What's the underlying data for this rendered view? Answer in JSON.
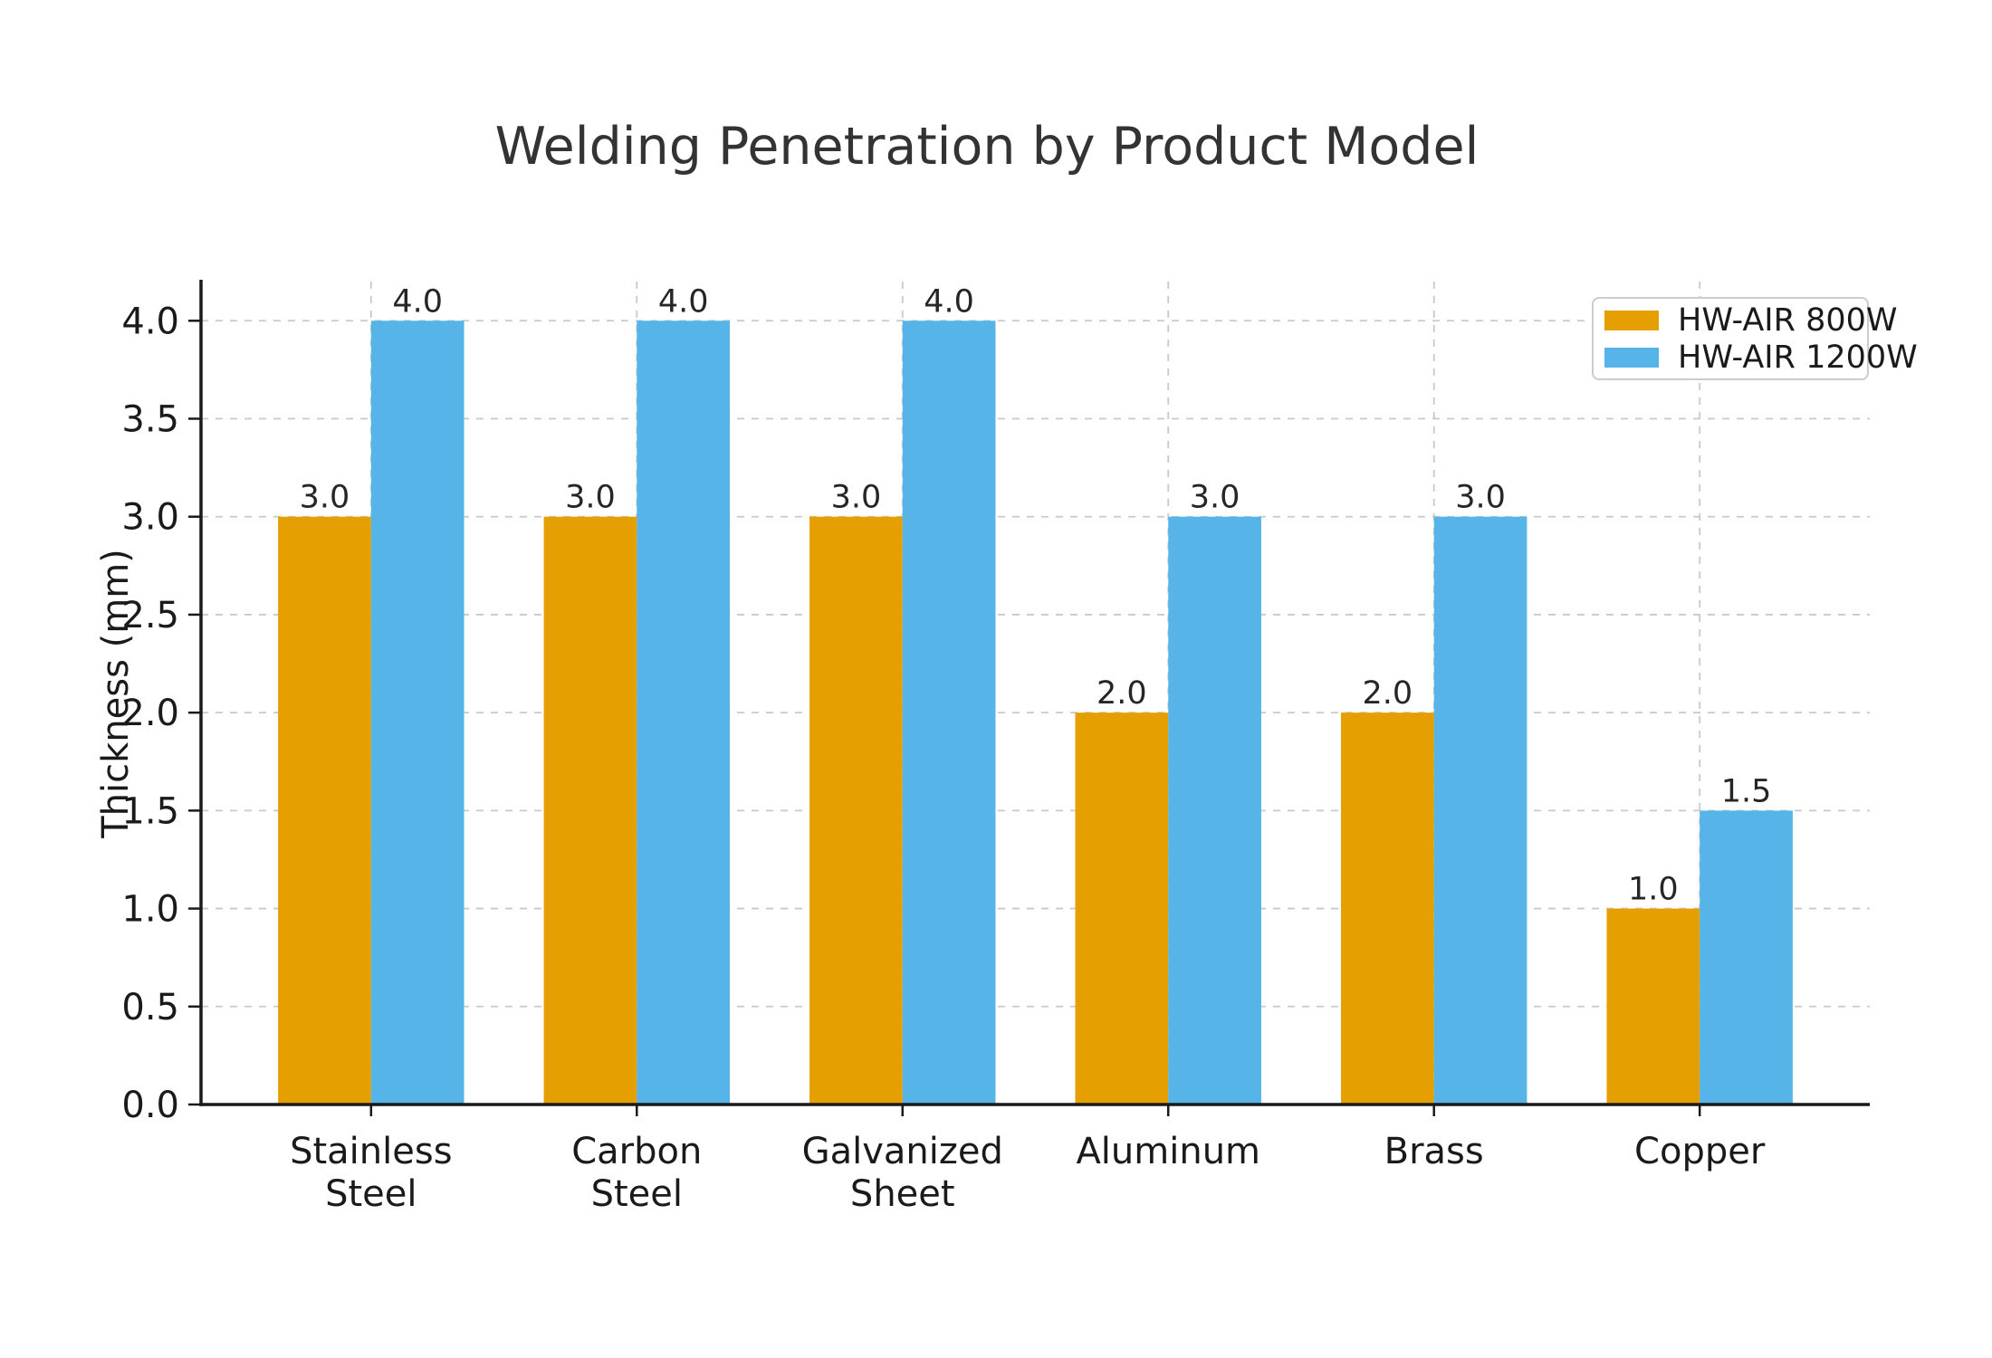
{
  "chart_data": {
    "type": "bar",
    "title": "Welding Penetration by Product Model",
    "xlabel": "",
    "ylabel": "Thickness (mm)",
    "categories": [
      [
        "Stainless",
        "Steel"
      ],
      [
        "Carbon",
        "Steel"
      ],
      [
        "Galvanized",
        "Sheet"
      ],
      [
        "Aluminum"
      ],
      [
        "Brass"
      ],
      [
        "Copper"
      ]
    ],
    "series": [
      {
        "name": "HW-AIR 800W",
        "color": "#E69F00",
        "values": [
          3.0,
          3.0,
          3.0,
          2.0,
          2.0,
          1.0
        ],
        "value_labels": [
          "3.0",
          "3.0",
          "3.0",
          "2.0",
          "2.0",
          "1.0"
        ]
      },
      {
        "name": "HW-AIR 1200W",
        "color": "#56B4E9",
        "values": [
          4.0,
          4.0,
          4.0,
          3.0,
          3.0,
          1.5
        ],
        "value_labels": [
          "4.0",
          "4.0",
          "4.0",
          "3.0",
          "3.0",
          "1.5"
        ]
      }
    ],
    "y_ticks": [
      0.0,
      0.5,
      1.0,
      1.5,
      2.0,
      2.5,
      3.0,
      3.5,
      4.0
    ],
    "y_tick_labels": [
      "0.0",
      "0.5",
      "1.0",
      "1.5",
      "2.0",
      "2.5",
      "3.0",
      "3.5",
      "4.0"
    ],
    "ylim": [
      0,
      4.2
    ],
    "grid": "dashed-both-axes",
    "legend_position": "upper-right",
    "colors": {
      "grid": "#c9c9c9",
      "axis": "#1a1a1a",
      "tick_label": "#1a1a1a",
      "value_label": "#262626",
      "title": "#333333",
      "background": "#ffffff"
    }
  }
}
